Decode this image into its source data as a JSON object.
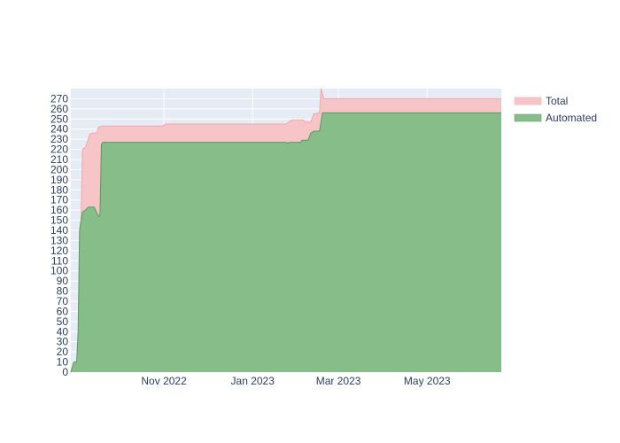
{
  "chart_data": {
    "type": "area",
    "title": "",
    "xlabel": "",
    "ylabel": "",
    "x_range": [
      "2022-08-29",
      "2023-06-21"
    ],
    "ylim": [
      0,
      280
    ],
    "y_ticks": [
      0,
      10,
      20,
      30,
      40,
      50,
      60,
      70,
      80,
      90,
      100,
      110,
      120,
      130,
      140,
      150,
      160,
      170,
      180,
      190,
      200,
      210,
      220,
      230,
      240,
      250,
      260,
      270
    ],
    "x_ticks": [
      {
        "date": "2022-11-01",
        "label": "Nov 2022"
      },
      {
        "date": "2023-01-01",
        "label": "Jan 2023"
      },
      {
        "date": "2023-03-01",
        "label": "Mar 2023"
      },
      {
        "date": "2023-05-01",
        "label": "May 2023"
      }
    ],
    "grid": true,
    "legend_position": "top-right",
    "series": [
      {
        "name": "Total",
        "color": "#f7c5c8",
        "line_color": "#f3a6ad",
        "points": [
          [
            "2022-08-29",
            0
          ],
          [
            "2022-08-31",
            10
          ],
          [
            "2022-09-02",
            10
          ],
          [
            "2022-09-03",
            30
          ],
          [
            "2022-09-04",
            140
          ],
          [
            "2022-09-05",
            150
          ],
          [
            "2022-09-06",
            220
          ],
          [
            "2022-09-08",
            222
          ],
          [
            "2022-09-10",
            230
          ],
          [
            "2022-09-11",
            235
          ],
          [
            "2022-09-13",
            236
          ],
          [
            "2022-09-16",
            236
          ],
          [
            "2022-09-17",
            242
          ],
          [
            "2022-09-20",
            243
          ],
          [
            "2022-10-31",
            243
          ],
          [
            "2022-11-02",
            245
          ],
          [
            "2023-01-24",
            245
          ],
          [
            "2023-01-26",
            247
          ],
          [
            "2023-01-28",
            249
          ],
          [
            "2023-02-05",
            249
          ],
          [
            "2023-02-06",
            247
          ],
          [
            "2023-02-10",
            247
          ],
          [
            "2023-02-12",
            255
          ],
          [
            "2023-02-16",
            256
          ],
          [
            "2023-02-17",
            280
          ],
          [
            "2023-02-19",
            270
          ],
          [
            "2023-06-21",
            270
          ]
        ]
      },
      {
        "name": "Automated",
        "color": "#86bd89",
        "line_color": "#5a9a5e",
        "points": [
          [
            "2022-08-29",
            0
          ],
          [
            "2022-08-31",
            10
          ],
          [
            "2022-09-02",
            10
          ],
          [
            "2022-09-03",
            40
          ],
          [
            "2022-09-04",
            140
          ],
          [
            "2022-09-05",
            150
          ],
          [
            "2022-09-06",
            158
          ],
          [
            "2022-09-08",
            160
          ],
          [
            "2022-09-10",
            163
          ],
          [
            "2022-09-14",
            163
          ],
          [
            "2022-09-16",
            157
          ],
          [
            "2022-09-17",
            154
          ],
          [
            "2022-09-18",
            155
          ],
          [
            "2022-09-19",
            225
          ],
          [
            "2022-09-20",
            227
          ],
          [
            "2023-01-24",
            227
          ],
          [
            "2023-01-25",
            226
          ],
          [
            "2023-01-26",
            227
          ],
          [
            "2023-02-03",
            227
          ],
          [
            "2023-02-04",
            229
          ],
          [
            "2023-02-08",
            229
          ],
          [
            "2023-02-10",
            236
          ],
          [
            "2023-02-12",
            238
          ],
          [
            "2023-02-16",
            238
          ],
          [
            "2023-02-18",
            256
          ],
          [
            "2023-06-21",
            256
          ]
        ]
      }
    ]
  }
}
